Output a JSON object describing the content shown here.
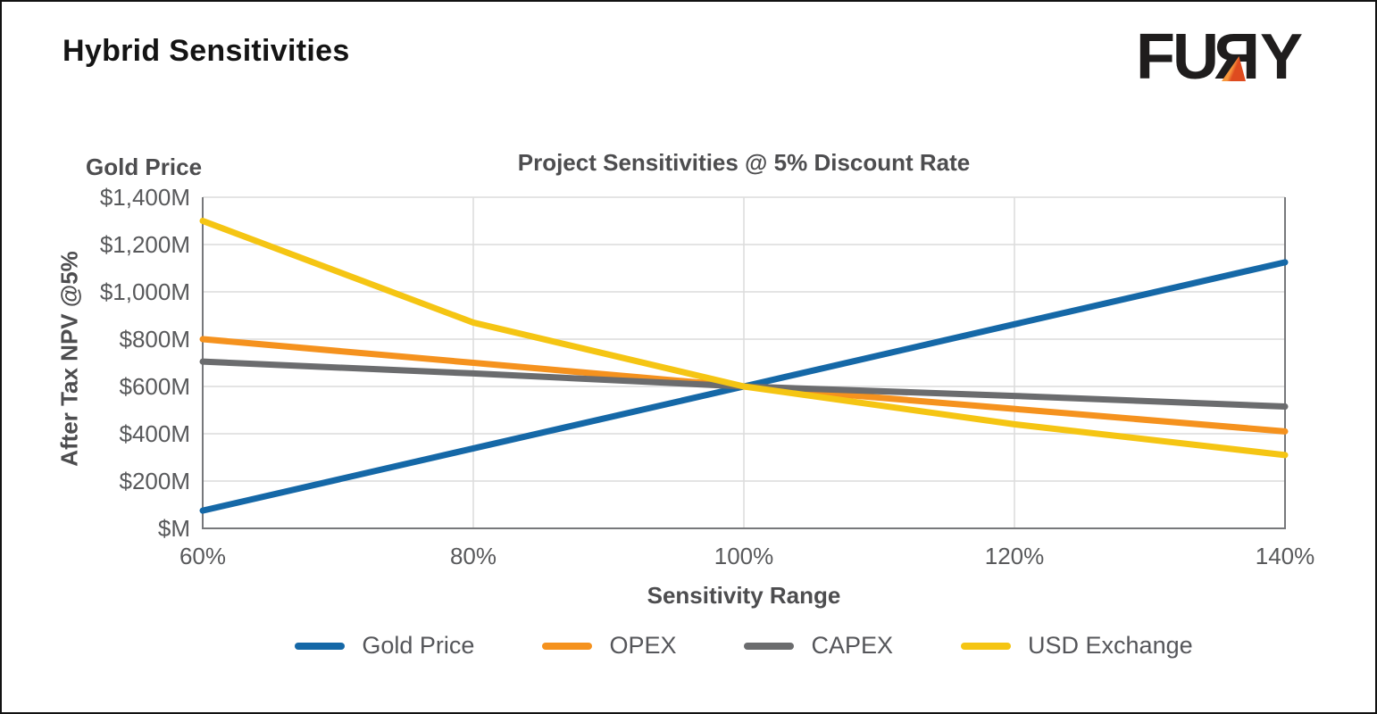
{
  "header": {
    "title": "Hybrid Sensitivities",
    "logo": {
      "left": "FU",
      "mirrored_letter": "R",
      "right": "Y",
      "accent_color": "#E8611F"
    }
  },
  "chart_data": {
    "type": "line",
    "title": "Project Sensitivities @ 5% Discount Rate",
    "corner_label": "Gold Price",
    "xlabel": "Sensitivity Range",
    "ylabel": "After Tax NPV @5%",
    "x": [
      "60%",
      "80%",
      "100%",
      "120%",
      "140%"
    ],
    "x_values": [
      60,
      80,
      100,
      120,
      140
    ],
    "ylim": [
      0,
      1400
    ],
    "y_tick_step": 200,
    "y_ticks": [
      "$M",
      "$200M",
      "$400M",
      "$600M",
      "$800M",
      "$1,000M",
      "$1,200M",
      "$1,400M"
    ],
    "y_unit": "$M (millions)",
    "grid": true,
    "legend_position": "bottom",
    "series": [
      {
        "name": "Gold Price",
        "color": "#1568A7",
        "values": [
          75,
          338,
          600,
          863,
          1125
        ]
      },
      {
        "name": "OPEX",
        "color": "#F5921E",
        "values": [
          800,
          700,
          600,
          505,
          410
        ]
      },
      {
        "name": "CAPEX",
        "color": "#6B6C6E",
        "values": [
          705,
          655,
          600,
          560,
          515
        ]
      },
      {
        "name": "USD Exchange",
        "color": "#F5C513",
        "values": [
          1300,
          870,
          600,
          440,
          310
        ]
      }
    ]
  }
}
